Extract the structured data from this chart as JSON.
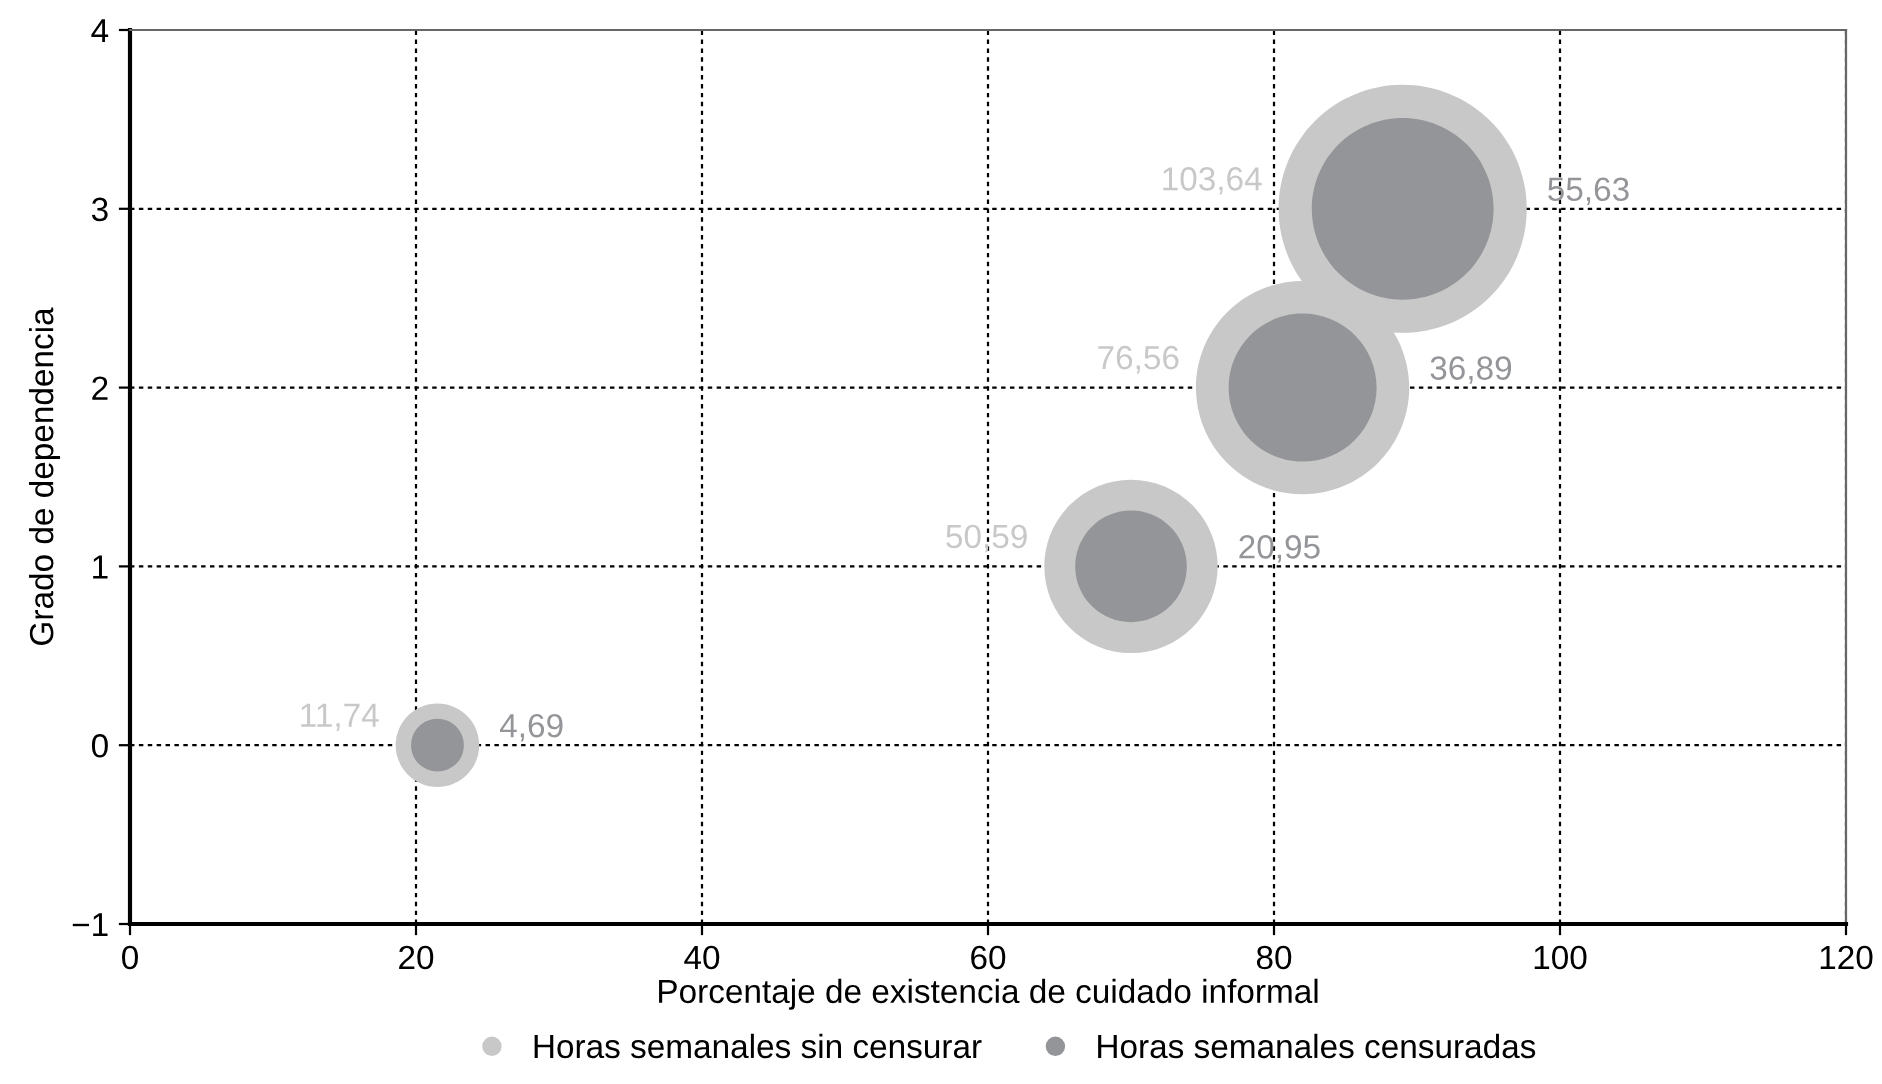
{
  "chart_data": {
    "type": "bubble",
    "xlabel": "Porcentaje de existencia de cuidado informal",
    "ylabel": "Grado de dependencia",
    "x": [
      21.5,
      70,
      82,
      89
    ],
    "series": [
      {
        "name": "Horas semanales sin censurar",
        "color": "#c8c8c8",
        "values": [
          0,
          1,
          2,
          3
        ],
        "sizes": [
          11.74,
          50.59,
          76.56,
          103.64
        ],
        "value_labels": [
          "11,74",
          "50,59",
          "76,56",
          "103,64"
        ]
      },
      {
        "name": "Horas semanales censuradas",
        "color": "#939598",
        "values": [
          0,
          1,
          2,
          3
        ],
        "sizes": [
          4.69,
          20.95,
          36.89,
          55.63
        ],
        "value_labels": [
          "4,69",
          "20,95",
          "36,89",
          "55,63"
        ]
      }
    ],
    "xlim": [
      0,
      120
    ],
    "xticks": [
      0,
      20,
      40,
      60,
      80,
      100,
      120
    ],
    "ylim": [
      -1,
      4
    ],
    "yticks": [
      {
        "value": -1,
        "label": "−1"
      },
      0,
      1,
      2,
      3,
      4
    ],
    "grid": true,
    "legend": "bottom",
    "marker": "circle"
  }
}
